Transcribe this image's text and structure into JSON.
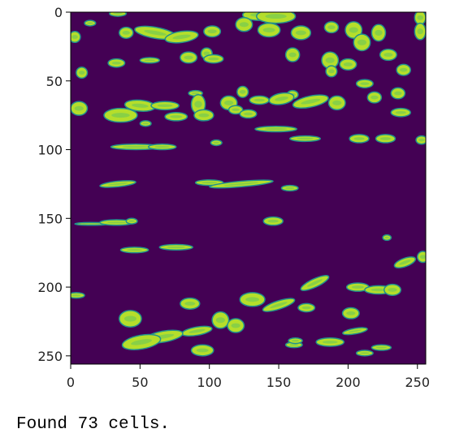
{
  "plot": {
    "image": {
      "kind": "segmentation-mask",
      "rows": 256,
      "cols": 256,
      "colormap": "viridis",
      "background_color": "#440154",
      "blob_fill_color": "#b5de2b",
      "blob_mid_color": "#35b779",
      "blob_edge_color": "#21918c"
    },
    "x_axis": {
      "range": [
        0,
        256
      ],
      "ticks": [
        {
          "value": 0,
          "label": "0"
        },
        {
          "value": 50,
          "label": "50"
        },
        {
          "value": 100,
          "label": "100"
        },
        {
          "value": 150,
          "label": "150"
        },
        {
          "value": 200,
          "label": "200"
        },
        {
          "value": 250,
          "label": "250"
        }
      ]
    },
    "y_axis": {
      "range": [
        0,
        256
      ],
      "inverted": true,
      "ticks": [
        {
          "value": 0,
          "label": "0"
        },
        {
          "value": 50,
          "label": "50"
        },
        {
          "value": 100,
          "label": "100"
        },
        {
          "value": 150,
          "label": "150"
        },
        {
          "value": 200,
          "label": "200"
        },
        {
          "value": 250,
          "label": "250"
        }
      ]
    },
    "blobs": [
      [
        34,
        1,
        6,
        2,
        0
      ],
      [
        136,
        2,
        12,
        4,
        0
      ],
      [
        252,
        4,
        4,
        5,
        0
      ],
      [
        148,
        3,
        14,
        5,
        0
      ],
      [
        14,
        8,
        4,
        2,
        0
      ],
      [
        40,
        15,
        5,
        4,
        0
      ],
      [
        3,
        18,
        4,
        4,
        0
      ],
      [
        61,
        15,
        15,
        4,
        10
      ],
      [
        80,
        18,
        12,
        4,
        -8
      ],
      [
        102,
        14,
        6,
        4,
        0
      ],
      [
        125,
        9,
        6,
        5,
        0
      ],
      [
        143,
        13,
        8,
        5,
        0
      ],
      [
        166,
        15,
        7,
        5,
        0
      ],
      [
        188,
        11,
        5,
        4,
        0
      ],
      [
        204,
        13,
        6,
        6,
        0
      ],
      [
        222,
        15,
        5,
        6,
        0
      ],
      [
        252,
        14,
        4,
        6,
        0
      ],
      [
        98,
        30,
        4,
        4,
        0
      ],
      [
        210,
        22,
        6,
        6,
        0
      ],
      [
        229,
        31,
        6,
        4,
        0
      ],
      [
        160,
        31,
        5,
        5,
        0
      ],
      [
        85,
        33,
        6,
        4,
        0
      ],
      [
        103,
        34,
        7,
        3,
        0
      ],
      [
        187,
        35,
        6,
        6,
        0
      ],
      [
        57,
        35,
        7,
        2,
        0
      ],
      [
        33,
        37,
        6,
        3,
        0
      ],
      [
        200,
        38,
        6,
        4,
        0
      ],
      [
        188,
        43,
        4,
        4,
        0
      ],
      [
        240,
        42,
        5,
        4,
        0
      ],
      [
        8,
        44,
        4,
        4,
        0
      ],
      [
        212,
        52,
        6,
        3,
        0
      ],
      [
        236,
        59,
        5,
        4,
        0
      ],
      [
        124,
        58,
        4,
        4,
        0
      ],
      [
        160,
        60,
        4,
        3,
        0
      ],
      [
        90,
        59,
        5,
        2,
        0
      ],
      [
        6,
        70,
        6,
        5,
        0
      ],
      [
        50,
        68,
        11,
        4,
        5
      ],
      [
        68,
        68,
        10,
        3,
        0
      ],
      [
        92,
        67,
        5,
        7,
        0
      ],
      [
        114,
        66,
        6,
        5,
        0
      ],
      [
        119,
        71,
        5,
        3,
        0
      ],
      [
        136,
        64,
        7,
        3,
        0
      ],
      [
        152,
        63,
        9,
        4,
        -10
      ],
      [
        173,
        65,
        13,
        4,
        -12
      ],
      [
        192,
        66,
        6,
        5,
        0
      ],
      [
        219,
        62,
        5,
        4,
        0
      ],
      [
        36,
        75,
        12,
        5,
        0
      ],
      [
        76,
        76,
        8,
        3,
        0
      ],
      [
        96,
        75,
        7,
        4,
        0
      ],
      [
        128,
        74,
        6,
        3,
        0
      ],
      [
        238,
        73,
        7,
        3,
        0
      ],
      [
        54,
        81,
        4,
        2,
        0
      ],
      [
        148,
        85,
        15,
        2,
        0
      ],
      [
        169,
        92,
        11,
        2,
        0
      ],
      [
        208,
        92,
        7,
        3,
        0
      ],
      [
        227,
        92,
        7,
        3,
        0
      ],
      [
        253,
        93,
        4,
        3,
        0
      ],
      [
        47,
        98,
        18,
        2,
        0
      ],
      [
        66,
        98,
        10,
        2,
        0
      ],
      [
        105,
        95,
        4,
        2,
        0
      ],
      [
        34,
        125,
        13,
        2,
        -6
      ],
      [
        100,
        124,
        10,
        2,
        0
      ],
      [
        123,
        125,
        23,
        2,
        -5
      ],
      [
        158,
        128,
        6,
        2,
        0
      ],
      [
        15,
        154,
        12,
        1,
        0
      ],
      [
        33,
        153,
        12,
        2,
        0
      ],
      [
        44,
        152,
        4,
        2,
        0
      ],
      [
        146,
        152,
        7,
        3,
        0
      ],
      [
        228,
        164,
        3,
        2,
        0
      ],
      [
        46,
        173,
        10,
        2,
        0
      ],
      [
        76,
        171,
        12,
        2,
        0
      ],
      [
        241,
        182,
        8,
        3,
        -20
      ],
      [
        254,
        178,
        4,
        4,
        0
      ],
      [
        176,
        197,
        11,
        3,
        -25
      ],
      [
        207,
        200,
        8,
        3,
        0
      ],
      [
        222,
        202,
        10,
        3,
        0
      ],
      [
        232,
        202,
        6,
        4,
        0
      ],
      [
        4,
        206,
        6,
        2,
        0
      ],
      [
        86,
        212,
        7,
        4,
        0
      ],
      [
        131,
        209,
        9,
        5,
        0
      ],
      [
        150,
        213,
        12,
        3,
        -18
      ],
      [
        170,
        215,
        6,
        3,
        0
      ],
      [
        202,
        219,
        6,
        4,
        0
      ],
      [
        43,
        223,
        8,
        6,
        0
      ],
      [
        108,
        224,
        6,
        6,
        0
      ],
      [
        119,
        228,
        6,
        5,
        0
      ],
      [
        91,
        232,
        11,
        3,
        -10
      ],
      [
        67,
        236,
        14,
        4,
        -10
      ],
      [
        51,
        240,
        14,
        5,
        -10
      ],
      [
        205,
        232,
        9,
        2,
        -10
      ],
      [
        187,
        240,
        10,
        3,
        0
      ],
      [
        161,
        242,
        6,
        2,
        0
      ],
      [
        212,
        248,
        6,
        2,
        0
      ],
      [
        224,
        244,
        7,
        2,
        0
      ],
      [
        95,
        246,
        8,
        4,
        0
      ],
      [
        162,
        239,
        5,
        2,
        0
      ]
    ]
  },
  "output_text": "Found 73 cells."
}
